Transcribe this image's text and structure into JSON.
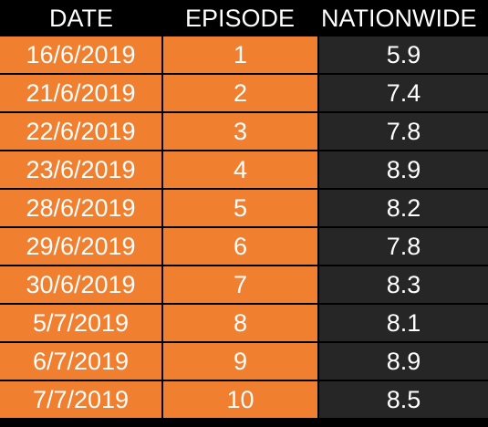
{
  "table": {
    "headers": {
      "date": "DATE",
      "episode": "EPISODE",
      "nationwide": "NATIONWIDE"
    },
    "rows": [
      {
        "date": "16/6/2019",
        "episode": "1",
        "nationwide": "5.9"
      },
      {
        "date": "21/6/2019",
        "episode": "2",
        "nationwide": "7.4"
      },
      {
        "date": "22/6/2019",
        "episode": "3",
        "nationwide": "7.8"
      },
      {
        "date": "23/6/2019",
        "episode": "4",
        "nationwide": "8.9"
      },
      {
        "date": "28/6/2019",
        "episode": "5",
        "nationwide": "8.2"
      },
      {
        "date": "29/6/2019",
        "episode": "6",
        "nationwide": "7.8"
      },
      {
        "date": "30/6/2019",
        "episode": "7",
        "nationwide": "8.3"
      },
      {
        "date": "5/7/2019",
        "episode": "8",
        "nationwide": "8.1"
      },
      {
        "date": "6/7/2019",
        "episode": "9",
        "nationwide": "8.9"
      },
      {
        "date": "7/7/2019",
        "episode": "10",
        "nationwide": "8.5"
      }
    ]
  },
  "colors": {
    "date_episode_bg": "#f07f30",
    "nationwide_bg": "#262626",
    "header_bg": "#000000",
    "text": "#ffffff"
  }
}
